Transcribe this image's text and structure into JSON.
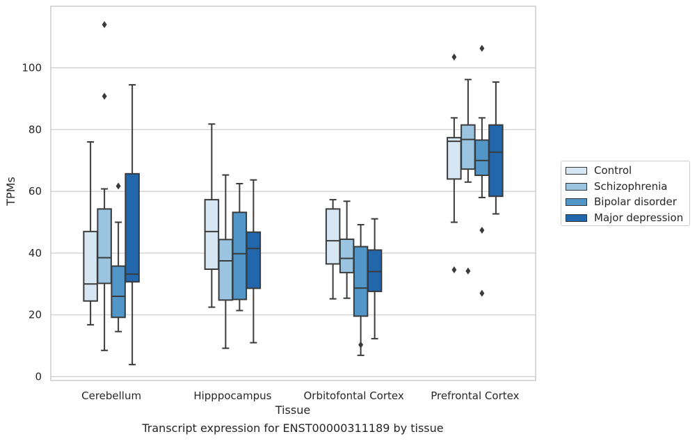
{
  "chart_data": {
    "type": "boxplot",
    "title": "Transcript expression for ENST00000311189 by tissue",
    "xlabel": "Tissue",
    "ylabel": "TPMs",
    "ylim": [
      -1.5,
      120
    ],
    "yticks": [
      0,
      20,
      40,
      60,
      80,
      100
    ],
    "grid": "horizontal",
    "legend_position": "right",
    "categories": [
      "Cerebellum",
      "Hipppocampus",
      "Orbitofontal Cortex",
      "Prefrontal Cortex"
    ],
    "series": [
      {
        "name": "Control",
        "color": "#d7e6f3",
        "boxes": [
          {
            "whislo": 16.8,
            "q1": 24.5,
            "med": 30.0,
            "q3": 47.0,
            "whishi": 76.0,
            "fliers": []
          },
          {
            "whislo": 22.5,
            "q1": 34.8,
            "med": 47.0,
            "q3": 57.3,
            "whishi": 81.8,
            "fliers": []
          },
          {
            "whislo": 25.2,
            "q1": 36.5,
            "med": 44.0,
            "q3": 54.3,
            "whishi": 57.3,
            "fliers": []
          },
          {
            "whislo": 50.0,
            "q1": 64.0,
            "med": 76.2,
            "q3": 77.4,
            "whishi": 83.8,
            "fliers": [
              34.6,
              103.5
            ]
          }
        ]
      },
      {
        "name": "Schizophrenia",
        "color": "#9ac4df",
        "boxes": [
          {
            "whislo": 8.5,
            "q1": 30.2,
            "med": 38.5,
            "q3": 54.3,
            "whishi": 60.8,
            "fliers": [
              90.8,
              114.0
            ]
          },
          {
            "whislo": 9.2,
            "q1": 24.8,
            "med": 37.5,
            "q3": 44.4,
            "whishi": 65.3,
            "fliers": []
          },
          {
            "whislo": 25.4,
            "q1": 33.7,
            "med": 38.3,
            "q3": 44.5,
            "whishi": 56.8,
            "fliers": []
          },
          {
            "whislo": 63.0,
            "q1": 67.2,
            "med": 76.8,
            "q3": 81.5,
            "whishi": 96.2,
            "fliers": [
              34.2
            ]
          }
        ]
      },
      {
        "name": "Bipolar disorder",
        "color": "#5296c7",
        "boxes": [
          {
            "whislo": 14.6,
            "q1": 19.2,
            "med": 26.0,
            "q3": 35.8,
            "whishi": 50.0,
            "fliers": [
              61.7
            ]
          },
          {
            "whislo": 21.4,
            "q1": 25.0,
            "med": 39.8,
            "q3": 53.2,
            "whishi": 62.5,
            "fliers": []
          },
          {
            "whislo": 6.9,
            "q1": 19.6,
            "med": 28.7,
            "q3": 42.1,
            "whishi": 49.2,
            "fliers": [
              10.3
            ]
          },
          {
            "whislo": 58.0,
            "q1": 65.2,
            "med": 70.0,
            "q3": 76.6,
            "whishi": 83.8,
            "fliers": [
              47.4,
              27.0,
              106.3
            ]
          }
        ]
      },
      {
        "name": "Major depression",
        "color": "#2267ac",
        "boxes": [
          {
            "whislo": 3.9,
            "q1": 30.7,
            "med": 33.2,
            "q3": 65.7,
            "whishi": 94.5,
            "fliers": []
          },
          {
            "whislo": 11.0,
            "q1": 28.6,
            "med": 41.5,
            "q3": 46.8,
            "whishi": 63.7,
            "fliers": []
          },
          {
            "whislo": 12.3,
            "q1": 27.6,
            "med": 34.0,
            "q3": 41.0,
            "whishi": 51.1,
            "fliers": []
          },
          {
            "whislo": 52.7,
            "q1": 58.4,
            "med": 72.7,
            "q3": 81.5,
            "whishi": 95.4,
            "fliers": []
          }
        ]
      }
    ]
  }
}
